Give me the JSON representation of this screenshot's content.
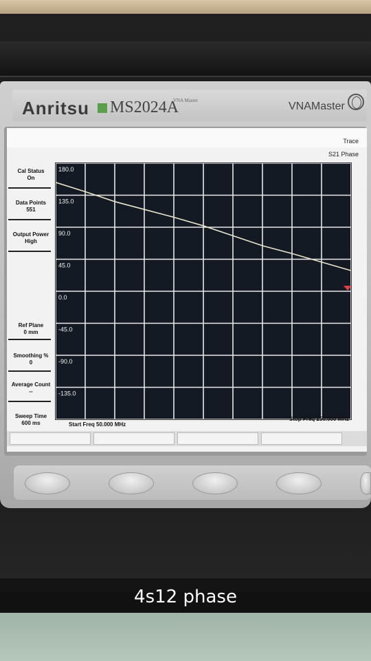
{
  "device": {
    "brand": "Anritsu",
    "model": "MS2024A",
    "model_sub": "VNA Master",
    "product_name": "VNAMaster"
  },
  "screen": {
    "trace_label": "Trace",
    "trace_name": "S21 Phase",
    "side_panel": [
      {
        "title": "Cal Status",
        "value": "On"
      },
      {
        "title": "Data Points",
        "value": "551"
      },
      {
        "title": "Output Power",
        "value": "High"
      },
      {
        "title": "Ref Plane",
        "value": "0 mm"
      },
      {
        "title": "Smoothing %",
        "value": "0"
      },
      {
        "title": "Average Count",
        "value": "--"
      },
      {
        "title": "Sweep Time",
        "value": "600 ms"
      }
    ],
    "start_freq": "Start Freq 50.000 MHz",
    "stop_freq": "Stop Freq 250.000 MHz"
  },
  "chart_data": {
    "type": "line",
    "title": "",
    "xlabel": "",
    "ylabel": "",
    "y_tick_labels": [
      "180.0",
      "135.0",
      "90.0",
      "45.0",
      "0.0",
      "-45.0",
      "-90.0",
      "-135.0"
    ],
    "xlim": [
      50,
      250
    ],
    "ylim": [
      -180,
      180
    ],
    "grid": true,
    "x_divisions": 10,
    "y_divisions": 8,
    "series": [
      {
        "color": "#e8e6c8",
        "x": [
          50,
          70,
          90,
          110,
          130,
          150,
          170,
          190,
          210,
          230,
          250
        ],
        "y": [
          153,
          140,
          126,
          115,
          104,
          92,
          78,
          64,
          53,
          41,
          29
        ]
      }
    ]
  },
  "caption": "4s12 phase"
}
